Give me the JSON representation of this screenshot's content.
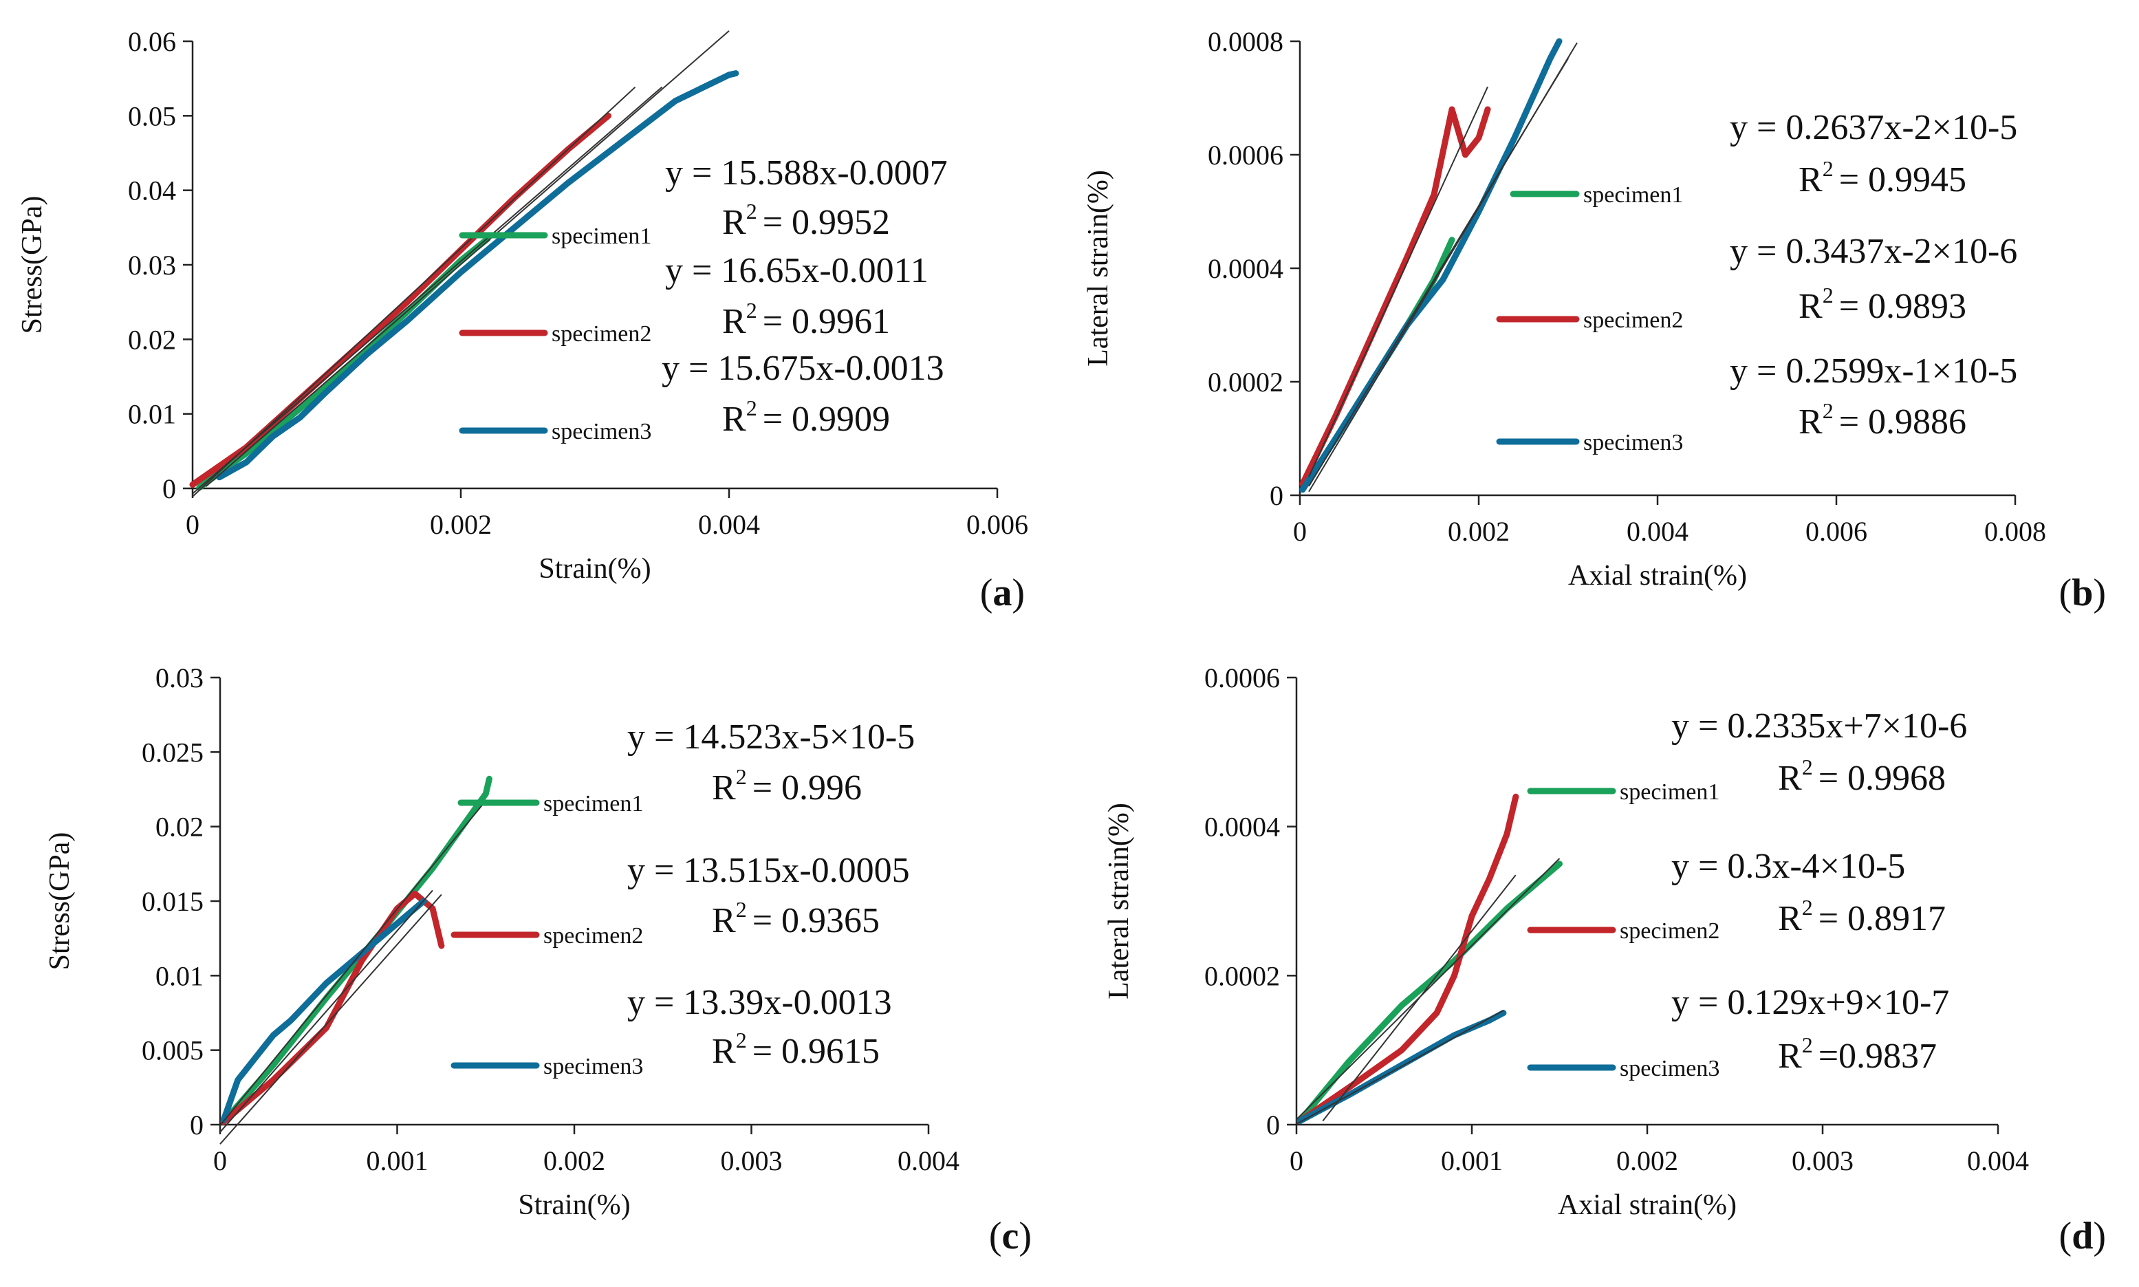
{
  "colors": {
    "specimen1": "#1aa15a",
    "specimen2": "#c2262b",
    "specimen3": "#0f6d99",
    "fit": "#333333"
  },
  "chart_data": [
    {
      "id": "a",
      "type": "line",
      "panel_label": "a",
      "xlabel": "Strain(%)",
      "ylabel": "Stress(GPa)",
      "xlim": [
        0,
        0.006
      ],
      "ylim": [
        0,
        0.06
      ],
      "xticks": [
        "0",
        "0.002",
        "0.004",
        "0.006"
      ],
      "yticks": [
        "0",
        "0.01",
        "0.02",
        "0.03",
        "0.04",
        "0.05",
        "0.06"
      ],
      "series": [
        {
          "name": "specimen1",
          "equation": "y = 15.588x-0.0007",
          "r2_label": "R",
          "r2_value": "= 0.9952",
          "x": [
            5e-05,
            0.0004,
            0.0008,
            0.0012,
            0.0016,
            0.002,
            0.0022
          ],
          "y": [
            0.0001,
            0.0047,
            0.0107,
            0.017,
            0.0237,
            0.0306,
            0.0335
          ],
          "fit": {
            "slope": 15.588,
            "intercept": -0.0007,
            "x_range": [
              0,
              0.0035
            ]
          }
        },
        {
          "name": "specimen2",
          "equation": "y = 16.65x-0.0011",
          "r2_label": "R",
          "r2_value": "= 0.9961",
          "x": [
            0,
            0.0004,
            0.0008,
            0.0012,
            0.0016,
            0.002,
            0.0024,
            0.0028,
            0.0031
          ],
          "y": [
            0.0005,
            0.0055,
            0.012,
            0.0185,
            0.025,
            0.032,
            0.039,
            0.0455,
            0.05
          ],
          "fit": {
            "slope": 16.65,
            "intercept": -0.0011,
            "x_range": [
              0,
              0.0033
            ]
          }
        },
        {
          "name": "specimen3",
          "equation": "y = 15.675x-0.0013",
          "r2_label": "R",
          "r2_value": "= 0.9909",
          "x": [
            0.0002,
            0.0004,
            0.0006,
            0.0008,
            0.001,
            0.0013,
            0.0016,
            0.002,
            0.0024,
            0.0028,
            0.0032,
            0.0036,
            0.004,
            0.00405
          ],
          "y": [
            0.0015,
            0.0035,
            0.007,
            0.0095,
            0.013,
            0.018,
            0.0225,
            0.029,
            0.035,
            0.041,
            0.0465,
            0.052,
            0.0555,
            0.0557
          ],
          "fit": {
            "slope": 15.675,
            "intercept": -0.0013,
            "x_range": [
              0.0001,
              0.004
            ]
          }
        }
      ]
    },
    {
      "id": "b",
      "type": "line",
      "panel_label": "b",
      "xlabel": "Axial strain(%)",
      "ylabel": "Lateral strain(%)",
      "xlim": [
        0,
        0.008
      ],
      "ylim": [
        0,
        0.0008
      ],
      "xticks": [
        "0",
        "0.002",
        "0.004",
        "0.006",
        "0.008"
      ],
      "yticks": [
        "0",
        "0.0002",
        "0.0004",
        "0.0006",
        "0.0008"
      ],
      "series": [
        {
          "name": "specimen1",
          "equation": "y = 0.2637x-2×10-5",
          "r2_label": "R",
          "r2_value": "= 0.9945",
          "x": [
            3e-05,
            0.0004,
            0.0008,
            0.0012,
            0.0015,
            0.0017
          ],
          "y": [
            1e-05,
            0.0001,
            0.0002,
            0.0003,
            0.00038,
            0.00045
          ],
          "fit": {
            "slope": 0.2637,
            "intercept": -2e-05,
            "x_range": [
              0.0001,
              0.0031
            ]
          }
        },
        {
          "name": "specimen2",
          "equation": "y = 0.3437x-2×10-6",
          "r2_label": "R",
          "r2_value": "= 0.9893",
          "x": [
            3e-05,
            0.0004,
            0.0008,
            0.0012,
            0.0015,
            0.0017,
            0.00185,
            0.002,
            0.0021
          ],
          "y": [
            2e-05,
            0.00014,
            0.00028,
            0.00042,
            0.00053,
            0.00068,
            0.0006,
            0.00063,
            0.00068
          ],
          "fit": {
            "slope": 0.3437,
            "intercept": -2e-06,
            "x_range": [
              0.0001,
              0.0021
            ]
          }
        },
        {
          "name": "specimen3",
          "equation": "y = 0.2599x-1×10-5",
          "r2_label": "R",
          "r2_value": "= 0.9886",
          "x": [
            3e-05,
            0.0004,
            0.0008,
            0.0012,
            0.0016,
            0.002,
            0.0024,
            0.0028,
            0.0029
          ],
          "y": [
            1e-05,
            0.0001,
            0.0002,
            0.0003,
            0.00038,
            0.0005,
            0.00063,
            0.00077,
            0.0008
          ],
          "fit": {
            "slope": 0.2599,
            "intercept": -1e-05,
            "x_range": [
              0.0001,
              0.003
            ]
          }
        }
      ]
    },
    {
      "id": "c",
      "type": "line",
      "panel_label": "c",
      "xlabel": "Strain(%)",
      "ylabel": "Stress(GPa)",
      "xlim": [
        0,
        0.004
      ],
      "ylim": [
        0,
        0.03
      ],
      "xticks": [
        "0",
        "0.001",
        "0.002",
        "0.003",
        "0.004"
      ],
      "yticks": [
        "0",
        "0.005",
        "0.01",
        "0.015",
        "0.02",
        "0.025",
        "0.03"
      ],
      "series": [
        {
          "name": "specimen1",
          "equation": "y = 14.523x-5×10-5",
          "r2_label": "R",
          "r2_value": "= 0.996",
          "x": [
            2e-05,
            0.0003,
            0.0006,
            0.0009,
            0.0012,
            0.0015,
            0.00152
          ],
          "y": [
            0.0002,
            0.004,
            0.0085,
            0.0128,
            0.0172,
            0.0222,
            0.0232
          ],
          "fit": {
            "slope": 14.523,
            "intercept": -5e-05,
            "x_range": [
              0,
              0.0015
            ]
          }
        },
        {
          "name": "specimen2",
          "equation": "y = 13.515x-0.0005",
          "r2_label": "R",
          "r2_value": "= 0.9365",
          "x": [
            2e-05,
            0.0003,
            0.0006,
            0.0008,
            0.001,
            0.0011,
            0.0012,
            0.00125
          ],
          "y": [
            0.0002,
            0.003,
            0.0065,
            0.011,
            0.0145,
            0.0155,
            0.0145,
            0.012
          ],
          "fit": {
            "slope": 13.515,
            "intercept": -0.0005,
            "x_range": [
              0,
              0.0012
            ]
          }
        },
        {
          "name": "specimen3",
          "equation": "y = 13.39x-0.0013",
          "r2_label": "R",
          "r2_value": "= 0.9615",
          "x": [
            2e-05,
            0.0001,
            0.0002,
            0.0003,
            0.0004,
            0.0006,
            0.0008,
            0.001,
            0.00115
          ],
          "y": [
            0.0003,
            0.003,
            0.0045,
            0.006,
            0.007,
            0.0095,
            0.0115,
            0.0135,
            0.015
          ],
          "fit": {
            "slope": 13.39,
            "intercept": -0.0013,
            "x_range": [
              0,
              0.00125
            ]
          }
        }
      ]
    },
    {
      "id": "d",
      "type": "line",
      "panel_label": "d",
      "xlabel": "Axial strain(%)",
      "ylabel": "Lateral strain(%)",
      "xlim": [
        0,
        0.004
      ],
      "ylim": [
        0,
        0.0006
      ],
      "xticks": [
        "0",
        "0.001",
        "0.002",
        "0.003",
        "0.004"
      ],
      "yticks": [
        "0",
        "0.0002",
        "0.0004",
        "0.0006"
      ],
      "series": [
        {
          "name": "specimen1",
          "equation": "y = 0.2335x+7×10-6",
          "r2_label": "R",
          "r2_value": "= 0.9968",
          "x": [
            2e-05,
            0.0003,
            0.0006,
            0.0009,
            0.0012,
            0.0015
          ],
          "y": [
            5e-06,
            8.5e-05,
            0.00016,
            0.00022,
            0.00029,
            0.00035
          ],
          "fit": {
            "slope": 0.2335,
            "intercept": 7e-06,
            "x_range": [
              0,
              0.0015
            ]
          }
        },
        {
          "name": "specimen2",
          "equation": "y = 0.3x-4×10-5",
          "r2_label": "R",
          "r2_value": "= 0.8917",
          "x": [
            2e-05,
            0.0003,
            0.0006,
            0.0008,
            0.0009,
            0.001,
            0.0011,
            0.0012,
            0.00125
          ],
          "y": [
            5e-06,
            5e-05,
            0.0001,
            0.00015,
            0.0002,
            0.00028,
            0.00033,
            0.00039,
            0.00044
          ],
          "fit": {
            "slope": 0.3,
            "intercept": -4e-05,
            "x_range": [
              0.00015,
              0.00125
            ]
          }
        },
        {
          "name": "specimen3",
          "equation": "y = 0.129x+9×10-7",
          "r2_label": "R",
          "r2_value": "=0.9837",
          "x": [
            2e-05,
            0.0003,
            0.0006,
            0.0009,
            0.0011,
            0.00118
          ],
          "y": [
            5e-06,
            4e-05,
            8e-05,
            0.00012,
            0.00014,
            0.00015
          ],
          "fit": {
            "slope": 0.129,
            "intercept": 9e-07,
            "x_range": [
              0,
              0.00118
            ]
          }
        }
      ]
    }
  ]
}
